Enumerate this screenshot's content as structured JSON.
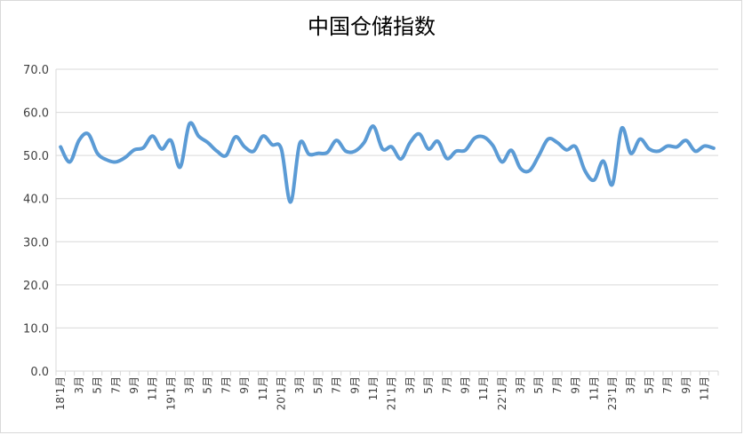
{
  "chart_data": {
    "type": "line",
    "title": "中国仓储指数",
    "categories": [
      "18'1月",
      null,
      "3月",
      null,
      "5月",
      null,
      "7月",
      null,
      "9月",
      null,
      "11月",
      null,
      "19'1月",
      null,
      "3月",
      null,
      "5月",
      null,
      "7月",
      null,
      "9月",
      null,
      "11月",
      null,
      "20'1月",
      null,
      "3月",
      null,
      "5月",
      null,
      "7月",
      null,
      "9月",
      null,
      "11月",
      null,
      "21'1月",
      null,
      "3月",
      null,
      "5月",
      null,
      "7月",
      null,
      "9月",
      null,
      "11月",
      null,
      "22'1月",
      null,
      "3月",
      null,
      "5月",
      null,
      "7月",
      null,
      "9月",
      null,
      "11月",
      null,
      "23'1月",
      null,
      "3月",
      null,
      "5月",
      null,
      "7月",
      null,
      "9月",
      null,
      "11月",
      null
    ],
    "values": [
      52,
      48.5,
      53.5,
      55,
      50.5,
      49,
      48.5,
      49.5,
      51.3,
      51.8,
      54.5,
      51.5,
      53.5,
      47.3,
      57.3,
      54.5,
      53,
      51,
      50,
      54.3,
      52,
      51,
      54.5,
      52.5,
      51.5,
      39.2,
      52.8,
      50.3,
      50.5,
      50.7,
      53.5,
      51,
      51,
      53,
      56.8,
      51.5,
      52,
      49.2,
      53,
      55,
      51.5,
      53.3,
      49.3,
      51,
      51.2,
      54,
      54.3,
      52.3,
      48.5,
      51.2,
      47,
      46.5,
      50,
      53.8,
      53,
      51.3,
      52,
      46.5,
      44.3,
      48.7,
      43.3,
      56.3,
      50.5,
      53.8,
      51.5,
      51,
      52.2,
      52,
      53.5,
      51,
      52.2,
      51.7
    ],
    "color": "#5b9bd5",
    "ylim": [
      0,
      70
    ],
    "yticks": [
      {
        "value": 0,
        "label": "0.0"
      },
      {
        "value": 10,
        "label": "10.0"
      },
      {
        "value": 20,
        "label": "20.0"
      },
      {
        "value": 30,
        "label": "30.0"
      },
      {
        "value": 40,
        "label": "40.0"
      },
      {
        "value": 50,
        "label": "50.0"
      },
      {
        "value": 60,
        "label": "60.0"
      },
      {
        "value": 70,
        "label": "70.0"
      }
    ],
    "grid": true
  }
}
